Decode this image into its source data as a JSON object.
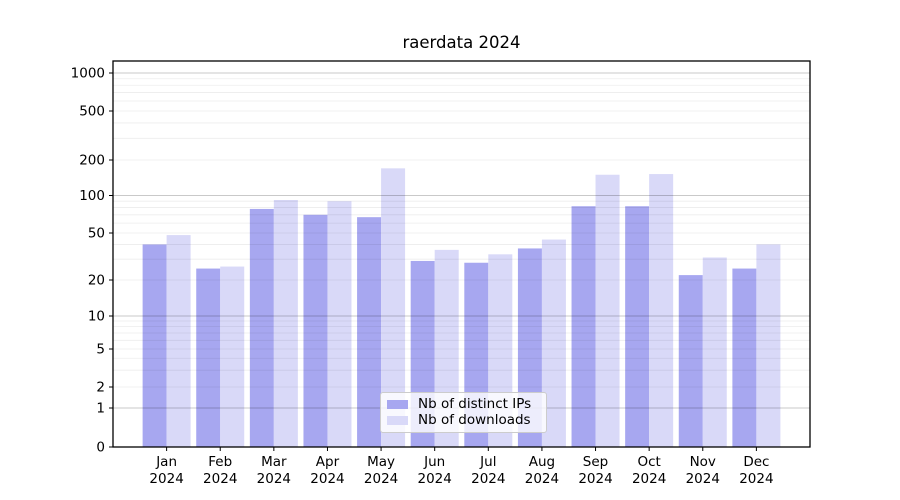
{
  "figure": {
    "title": "raerdata 2024"
  },
  "chart_data": {
    "type": "bar",
    "title": "raerdata 2024",
    "categories": [
      "Jan",
      "Feb",
      "Mar",
      "Apr",
      "May",
      "Jun",
      "Jul",
      "Aug",
      "Sep",
      "Oct",
      "Nov",
      "Dec"
    ],
    "category_year": "2024",
    "series": [
      {
        "name": "Nb of distinct IPs",
        "color": "#a7a7f0",
        "values": [
          40,
          25,
          78,
          70,
          67,
          29,
          28,
          37,
          82,
          82,
          22,
          25
        ]
      },
      {
        "name": "Nb of downloads",
        "color": "#d9d9f8",
        "values": [
          48,
          26,
          92,
          90,
          170,
          36,
          33,
          44,
          150,
          152,
          31,
          40
        ]
      }
    ],
    "yscale": "symlog",
    "yticks": [
      0,
      1,
      2,
      5,
      10,
      20,
      50,
      100,
      200,
      500,
      1000
    ],
    "ylim": [
      0,
      1200
    ],
    "grid": "horizontal, minor log lines + darker decade lines",
    "legend_position": "lower center inside axes"
  },
  "legend": {
    "items": [
      {
        "label": "Nb of distinct IPs",
        "color": "#a7a7f0"
      },
      {
        "label": "Nb of downloads",
        "color": "#d9d9f8"
      }
    ]
  },
  "colors": {
    "background": "#ffffff",
    "bar_dark": "#a7a7f0",
    "bar_light": "#d9d9f8",
    "grid_minor": "#ebebeb",
    "grid_major": "#c9c9c9",
    "axis": "#000000",
    "legend_border": "#cccccc"
  }
}
